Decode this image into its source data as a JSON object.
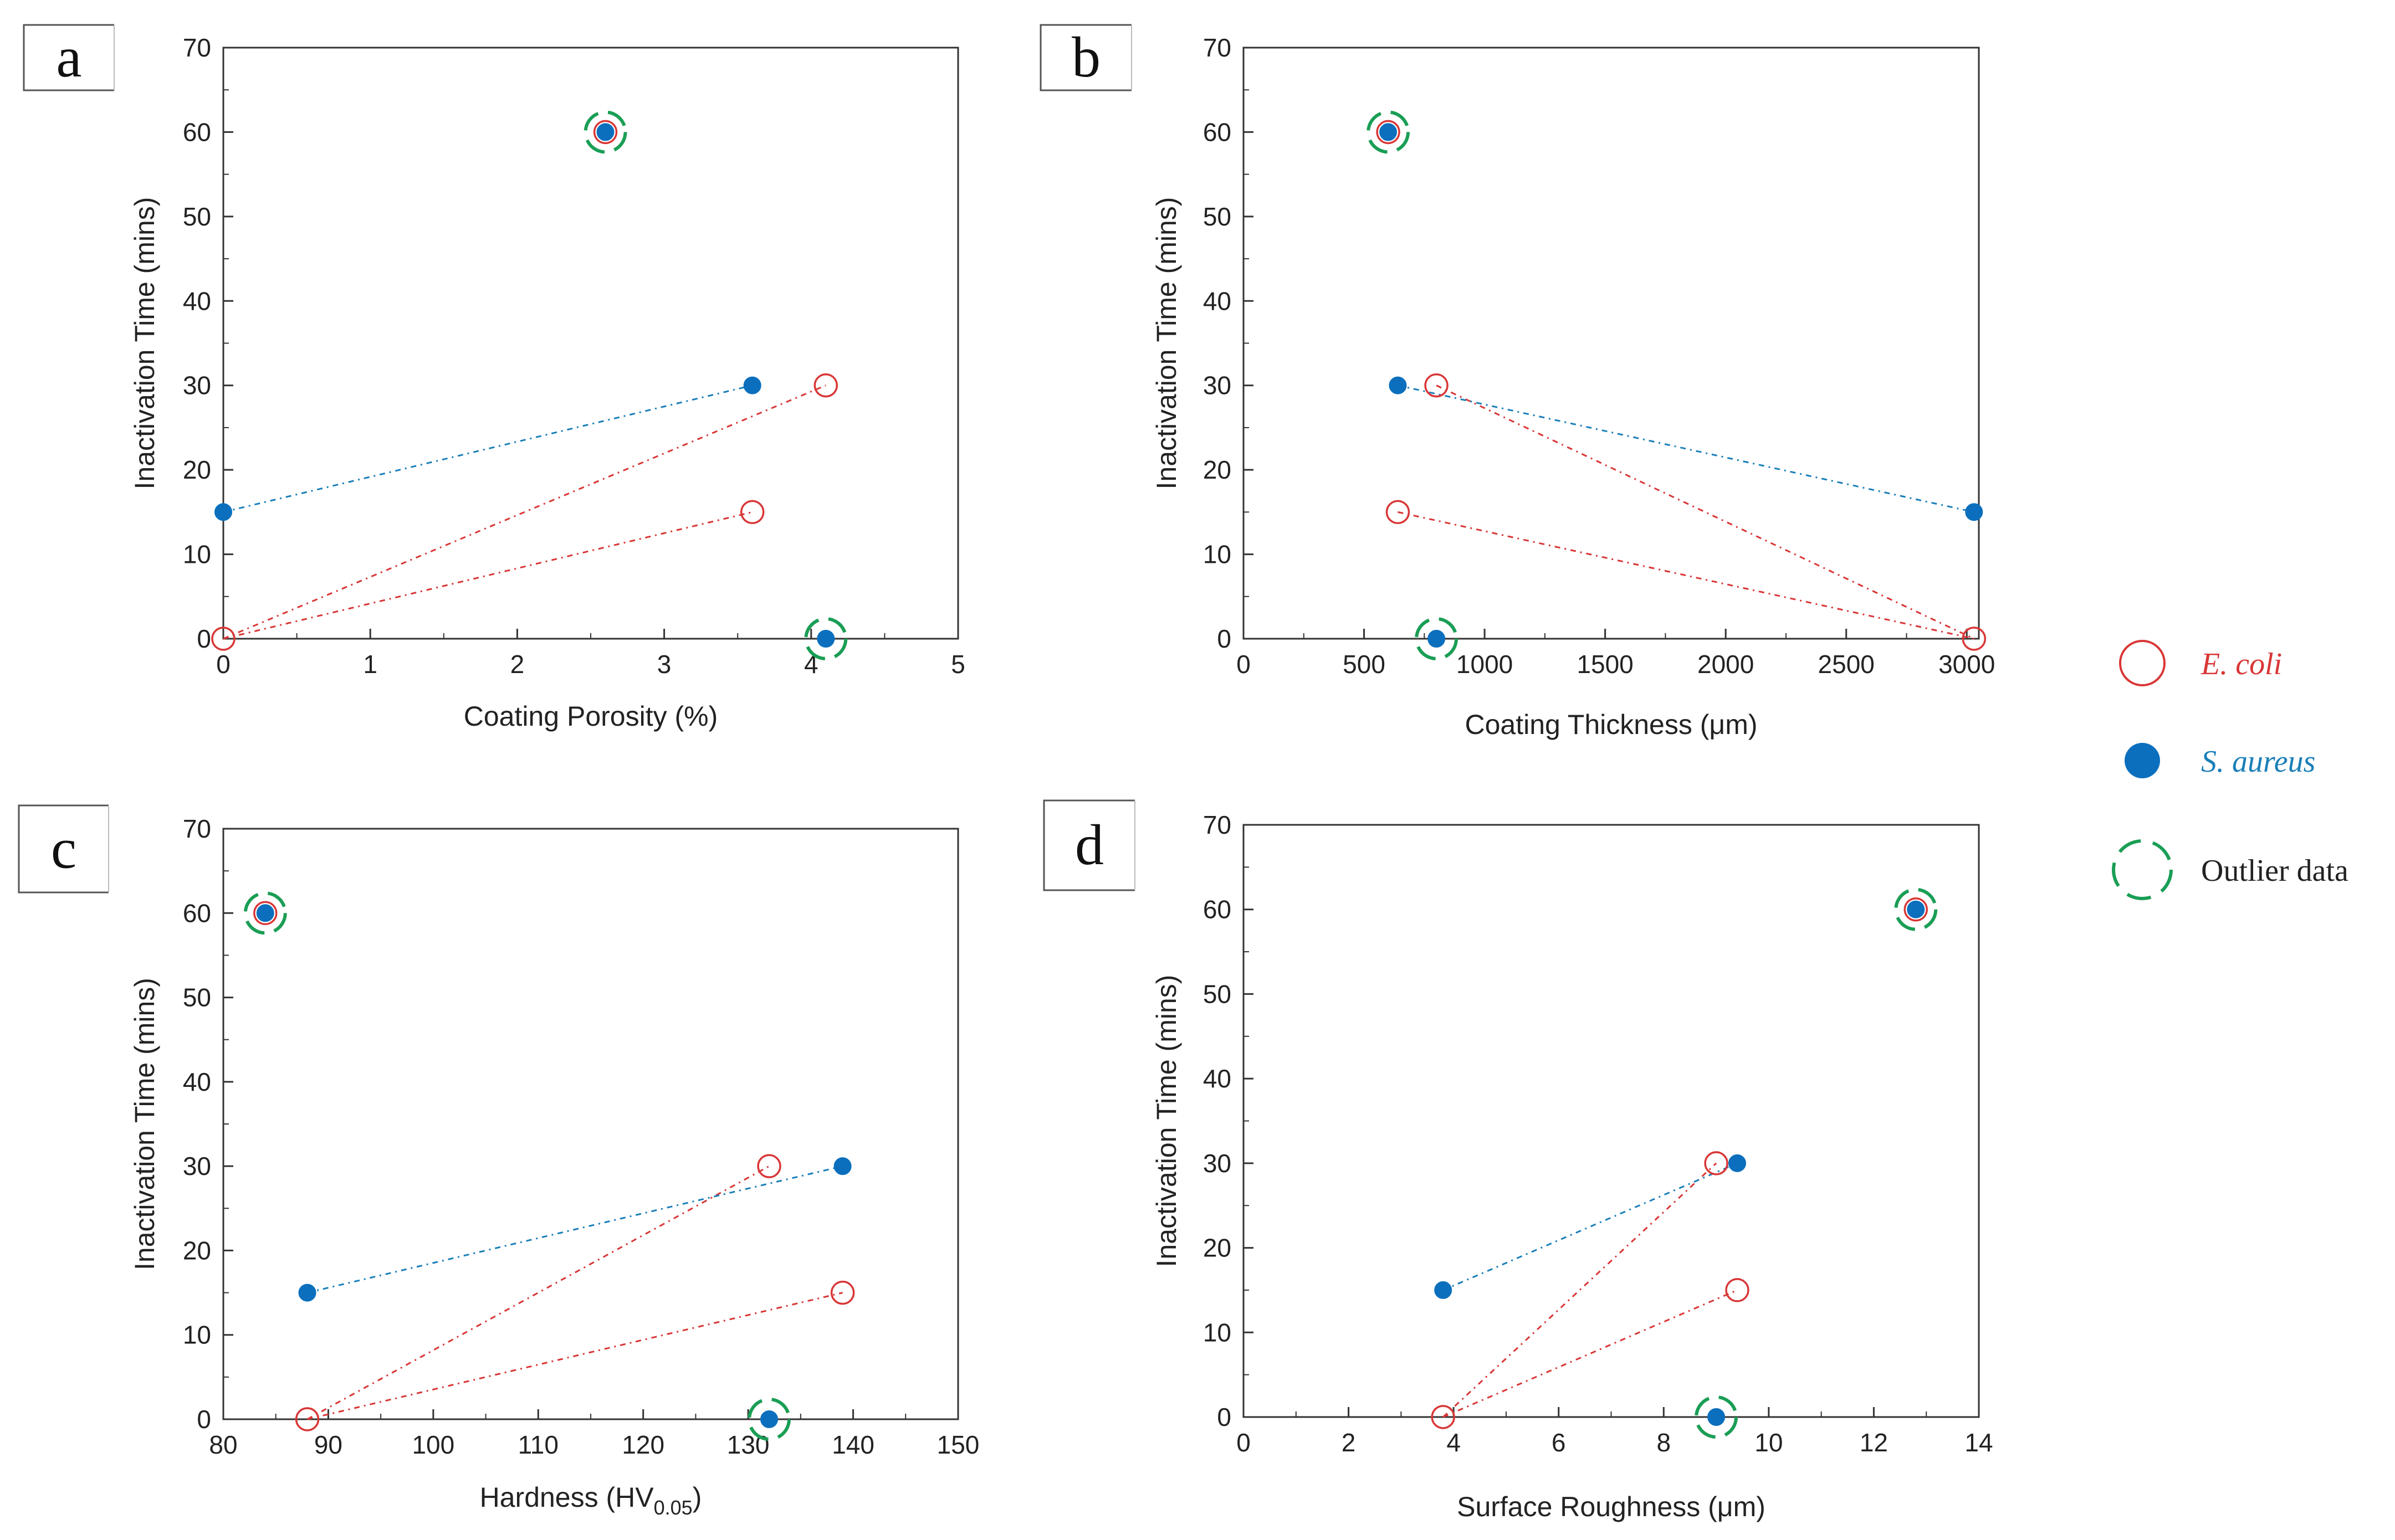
{
  "chart_data": [
    {
      "panel": "a",
      "type": "scatter",
      "xlabel": "Coating Porosity (%)",
      "ylabel": "Inactivation Time (mins)",
      "xlim": [
        0,
        5
      ],
      "ylim": [
        0,
        70
      ],
      "xticks": [
        0,
        1,
        2,
        3,
        4,
        5
      ],
      "yticks": [
        0,
        10,
        20,
        30,
        40,
        50,
        60,
        70
      ],
      "series": [
        {
          "name": "E. coli",
          "points": [
            [
              0,
              0
            ],
            [
              3.6,
              15
            ],
            [
              4.1,
              30
            ],
            [
              2.6,
              60
            ]
          ],
          "lines": [
            [
              [
                0,
                0
              ],
              [
                3.6,
                15
              ]
            ],
            [
              [
                0,
                0
              ],
              [
                4.1,
                30
              ]
            ]
          ]
        },
        {
          "name": "S. aureus",
          "points": [
            [
              0,
              15
            ],
            [
              3.6,
              30
            ],
            [
              4.1,
              0
            ],
            [
              2.6,
              60
            ]
          ],
          "lines": [
            [
              [
                0,
                15
              ],
              [
                3.6,
                30
              ]
            ]
          ]
        }
      ],
      "outliers": [
        [
          2.6,
          60
        ],
        [
          4.1,
          0
        ]
      ]
    },
    {
      "panel": "b",
      "type": "scatter",
      "xlabel": "Coating Thickness (μm)",
      "ylabel": "Inactivation Time (mins)",
      "xlim": [
        0,
        3050
      ],
      "ylim": [
        0,
        70
      ],
      "xticks": [
        0,
        500,
        1000,
        1500,
        2000,
        2500,
        3000
      ],
      "yticks": [
        0,
        10,
        20,
        30,
        40,
        50,
        60,
        70
      ],
      "series": [
        {
          "name": "E. coli",
          "points": [
            [
              640,
              15
            ],
            [
              800,
              30
            ],
            [
              3030,
              0
            ],
            [
              600,
              60
            ]
          ],
          "lines": [
            [
              [
                640,
                15
              ],
              [
                3030,
                0
              ]
            ],
            [
              [
                800,
                30
              ],
              [
                3030,
                0
              ]
            ]
          ]
        },
        {
          "name": "S. aureus",
          "points": [
            [
              640,
              30
            ],
            [
              3030,
              15
            ],
            [
              800,
              0
            ],
            [
              600,
              60
            ]
          ],
          "lines": [
            [
              [
                640,
                30
              ],
              [
                3030,
                15
              ]
            ]
          ]
        }
      ],
      "outliers": [
        [
          600,
          60
        ],
        [
          800,
          0
        ]
      ]
    },
    {
      "panel": "c",
      "type": "scatter",
      "xlabel": "Hardness (HV",
      "xlabel_sub": "0.05",
      "xlabel_end": ")",
      "ylabel": "Inactivation Time (mins)",
      "xlim": [
        80,
        150
      ],
      "ylim": [
        0,
        70
      ],
      "xticks": [
        80,
        90,
        100,
        110,
        120,
        130,
        140,
        150
      ],
      "yticks": [
        0,
        10,
        20,
        30,
        40,
        50,
        60,
        70
      ],
      "series": [
        {
          "name": "E. coli",
          "points": [
            [
              88,
              0
            ],
            [
              132,
              30
            ],
            [
              139,
              15
            ],
            [
              84,
              60
            ]
          ],
          "lines": [
            [
              [
                88,
                0
              ],
              [
                132,
                30
              ]
            ],
            [
              [
                88,
                0
              ],
              [
                139,
                15
              ]
            ]
          ]
        },
        {
          "name": "S. aureus",
          "points": [
            [
              88,
              15
            ],
            [
              139,
              30
            ],
            [
              132,
              0
            ],
            [
              84,
              60
            ]
          ],
          "lines": [
            [
              [
                88,
                15
              ],
              [
                139,
                30
              ]
            ]
          ]
        }
      ],
      "outliers": [
        [
          84,
          60
        ],
        [
          132,
          0
        ]
      ]
    },
    {
      "panel": "d",
      "type": "scatter",
      "xlabel": "Surface Roughness (μm)",
      "ylabel": "Inactivation Time (mins)",
      "xlim": [
        0,
        14
      ],
      "ylim": [
        0,
        70
      ],
      "xticks": [
        0,
        2,
        4,
        6,
        8,
        10,
        12,
        14
      ],
      "yticks": [
        0,
        10,
        20,
        30,
        40,
        50,
        60,
        70
      ],
      "series": [
        {
          "name": "E. coli",
          "points": [
            [
              3.8,
              0
            ],
            [
              9.0,
              30
            ],
            [
              9.4,
              15
            ],
            [
              12.8,
              60
            ]
          ],
          "lines": [
            [
              [
                3.8,
                0
              ],
              [
                9.0,
                30
              ]
            ],
            [
              [
                3.8,
                0
              ],
              [
                9.4,
                15
              ]
            ]
          ]
        },
        {
          "name": "S. aureus",
          "points": [
            [
              3.8,
              15
            ],
            [
              9.4,
              30
            ],
            [
              9.0,
              0
            ],
            [
              12.8,
              60
            ]
          ],
          "lines": [
            [
              [
                3.8,
                15
              ],
              [
                9.4,
                30
              ]
            ]
          ]
        }
      ],
      "outliers": [
        [
          12.8,
          60
        ],
        [
          9.0,
          0
        ]
      ]
    }
  ],
  "legend": [
    {
      "key": "ecoli",
      "label": "E. coli",
      "color": "#d93636",
      "italic": true
    },
    {
      "key": "saureus",
      "label": "S. aureus",
      "color": "#1a7fb8",
      "italic": true
    },
    {
      "key": "outlier",
      "label": "Outlier data",
      "color": "#1a9e55",
      "italic": false
    }
  ],
  "colors": {
    "ecoli": "#d93636",
    "saureus": "#1a7fb8",
    "saureus_fill": "#0b6fbd",
    "outlier": "#1a9e55",
    "axis": "#333333"
  }
}
